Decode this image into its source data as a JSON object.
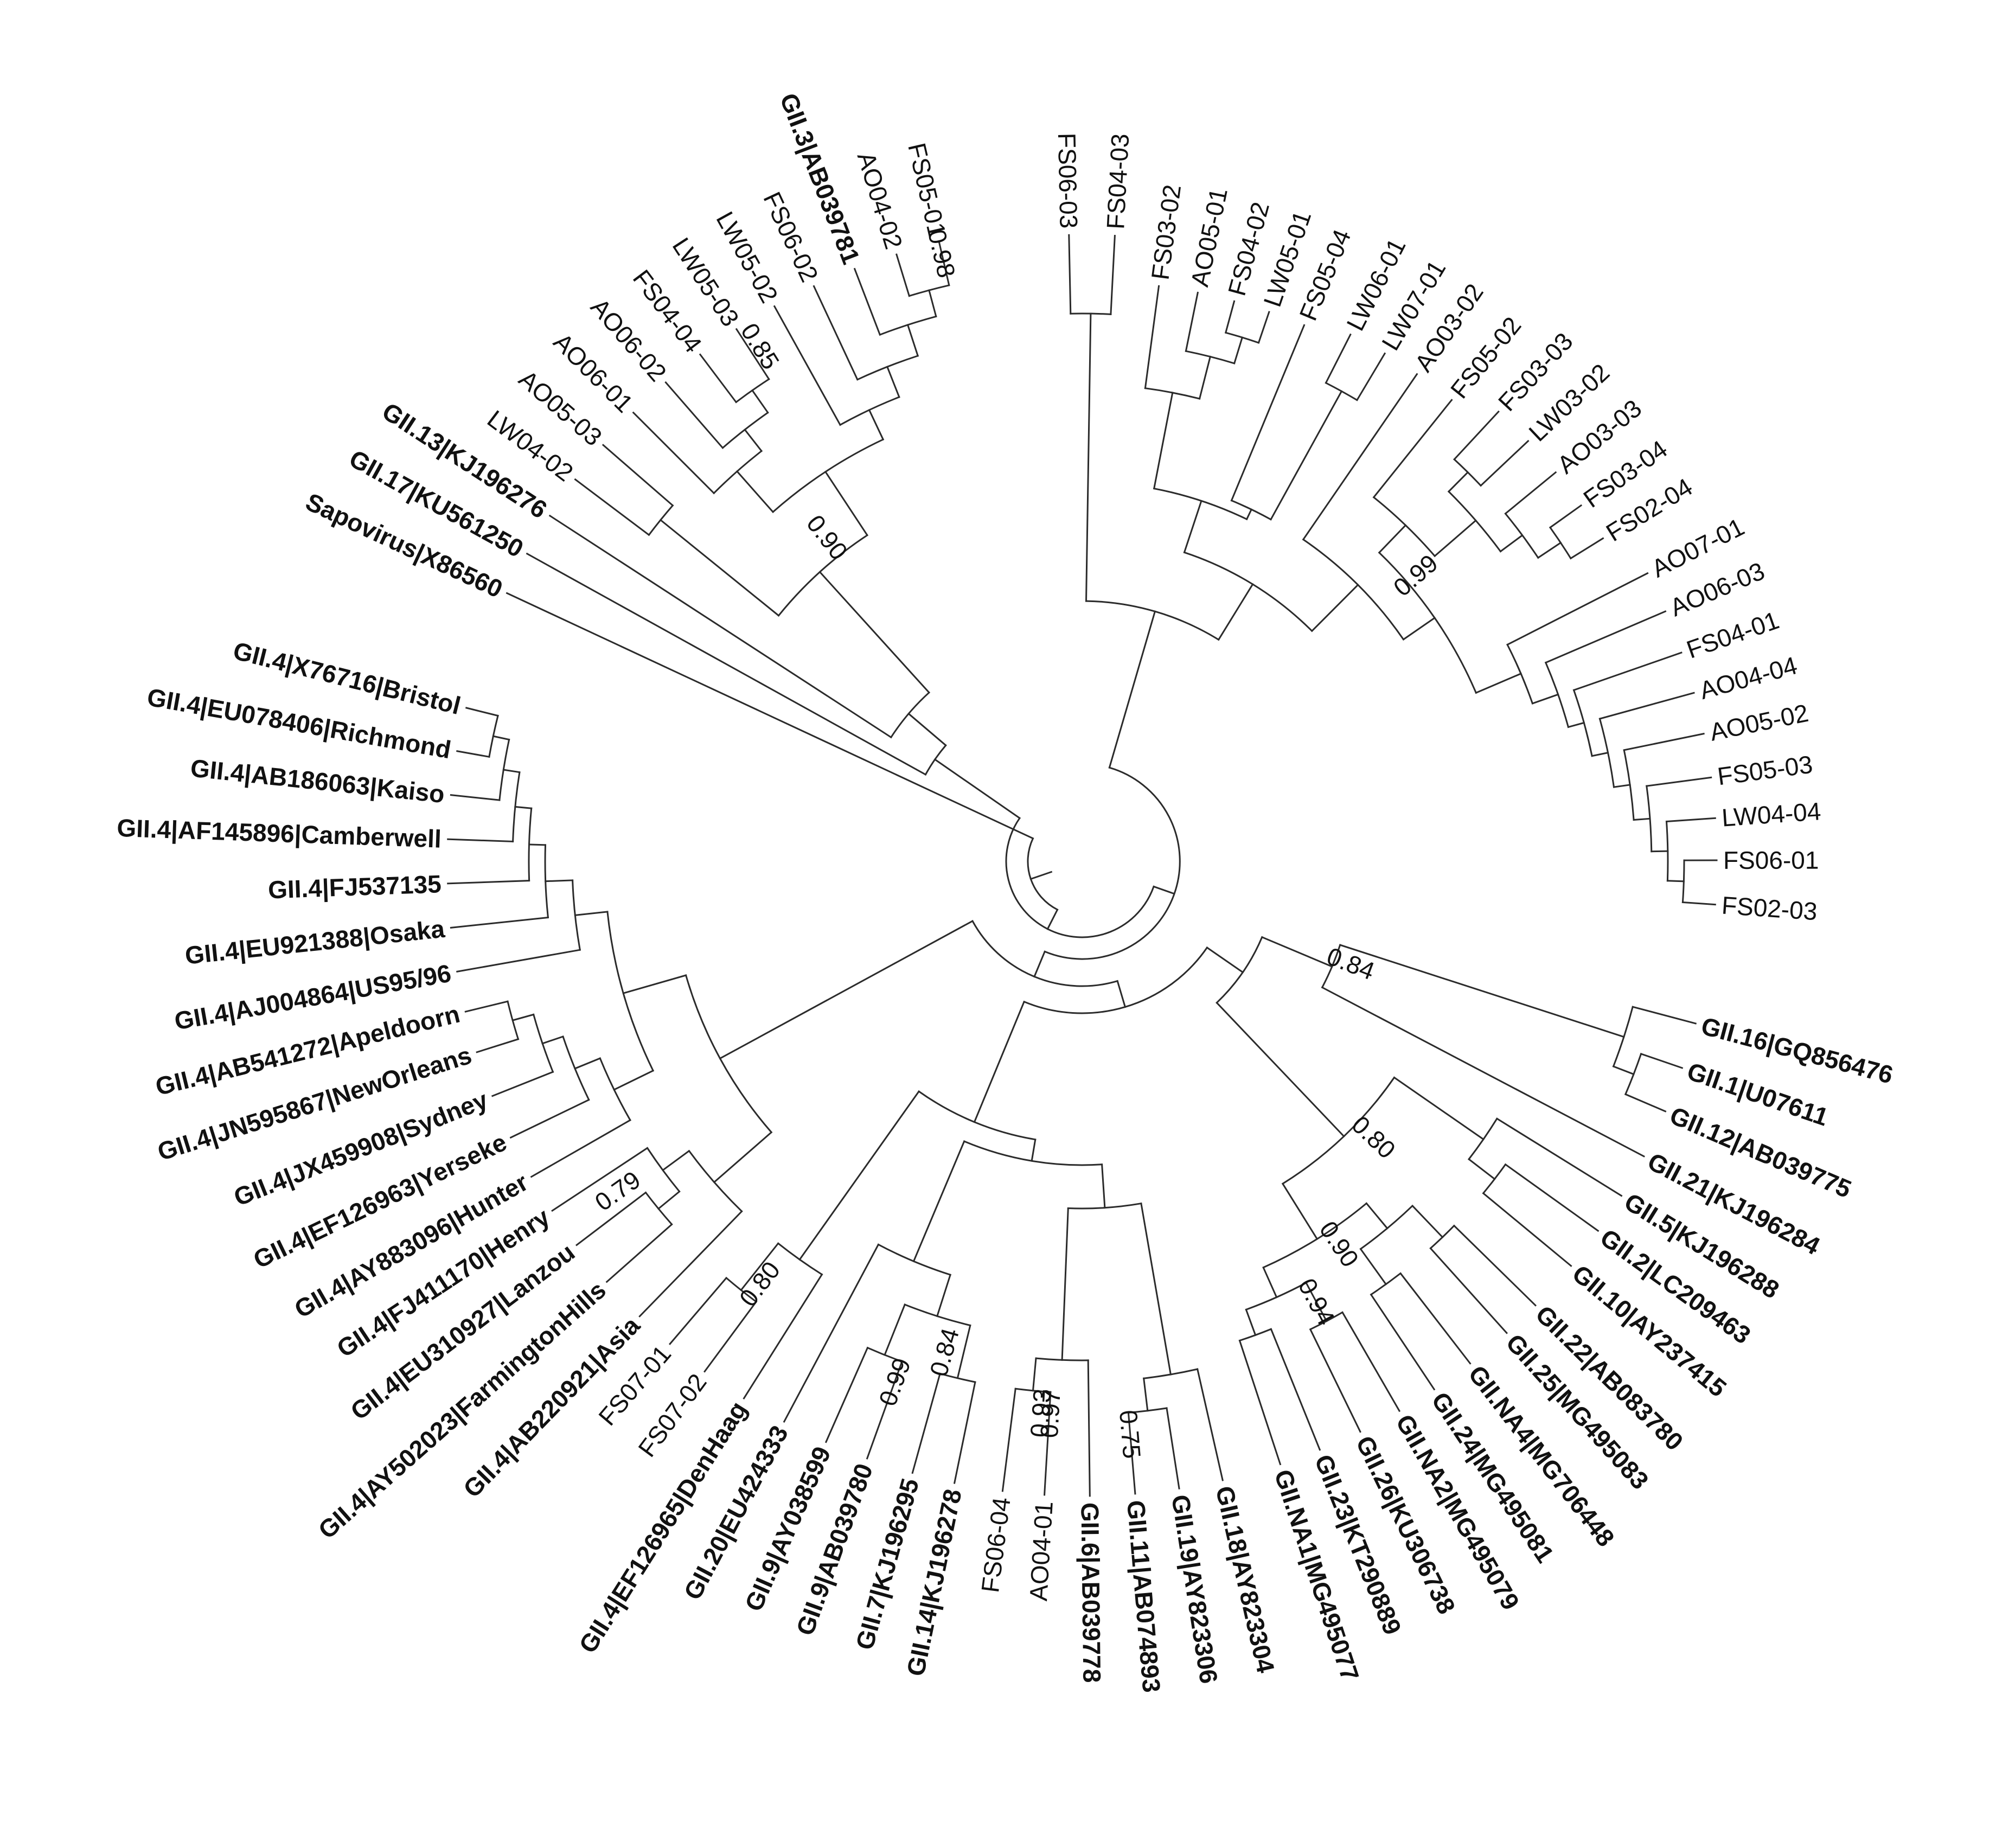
{
  "figure": {
    "rows": [
      {
        "label": "FS06-03",
        "ref": false
      },
      {
        "label": "FS04-03",
        "ref": false
      },
      {
        "label": "FS03-02",
        "ref": false
      },
      {
        "label": "AO05-01",
        "ref": false
      },
      {
        "label": "FS04-02",
        "ref": false
      },
      {
        "label": "LW05-01",
        "ref": false
      },
      {
        "label": "FS05-04",
        "ref": false
      },
      {
        "label": "LW06-01",
        "ref": false
      },
      {
        "label": "LW07-01",
        "ref": false
      },
      {
        "label": "AO03-02",
        "ref": false
      },
      {
        "label": "FS05-02",
        "ref": false
      },
      {
        "label": "FS03-03",
        "ref": false
      },
      {
        "label": "LW03-02",
        "ref": false
      },
      {
        "label": "AO03-03",
        "ref": false
      },
      {
        "label": "FS03-04",
        "ref": false
      },
      {
        "label": "FS02-04",
        "ref": false
      },
      {
        "label": "AO07-01",
        "ref": false
      },
      {
        "label": "AO06-03",
        "ref": false
      },
      {
        "label": "FS04-01",
        "ref": false
      },
      {
        "label": "AO04-04",
        "ref": false
      },
      {
        "label": "AO05-02",
        "ref": false
      },
      {
        "label": "FS05-03",
        "ref": false
      },
      {
        "label": "LW04-04",
        "ref": false
      },
      {
        "label": "FS06-01",
        "ref": false
      },
      {
        "label": "FS02-03",
        "ref": false
      },
      {
        "label": "GII.16|GQ856476",
        "ref": true
      },
      {
        "label": "GII.1|U07611",
        "ref": true
      },
      {
        "label": "GII.12|AB039775",
        "ref": true
      },
      {
        "label": "GII.21|KJ196284",
        "ref": true
      },
      {
        "label": "GII.5|KJ196288",
        "ref": true
      },
      {
        "label": "GII.2|LC209463",
        "ref": true
      },
      {
        "label": "GII.10|AY237415",
        "ref": true
      },
      {
        "label": "GII.22|AB083780",
        "ref": true
      },
      {
        "label": "GII.25|MG495083",
        "ref": true
      },
      {
        "label": "GII.NA4|MG706448",
        "ref": true
      },
      {
        "label": "GII.24|MG495081",
        "ref": true
      },
      {
        "label": "GII.NA2|MG495079",
        "ref": true
      },
      {
        "label": "GII.26|KU306738",
        "ref": true
      },
      {
        "label": "GII.23|KT290889",
        "ref": true
      },
      {
        "label": "GII.NA1|MG495077",
        "ref": true
      },
      {
        "label": "GII.18|AY823304",
        "ref": true
      },
      {
        "label": "GII.19|AY823306",
        "ref": true
      },
      {
        "label": "GII.11|AB074893",
        "ref": true
      },
      {
        "label": "GII.6|AB039778",
        "ref": true
      },
      {
        "label": "AO04-01",
        "ref": false
      },
      {
        "label": "FS06-04",
        "ref": false
      },
      {
        "label": "GII.14|KJ196278",
        "ref": true
      },
      {
        "label": "GII.7|KJ196295",
        "ref": true
      },
      {
        "label": "GII.9|AB039780",
        "ref": true
      },
      {
        "label": "GII.9|AY038599",
        "ref": true
      },
      {
        "label": "GII.20|EU424333",
        "ref": true
      },
      {
        "label": "GII.4|EF126965|DenHaag",
        "ref": true
      },
      {
        "label": "FS07-02",
        "ref": false
      },
      {
        "label": "FS07-01",
        "ref": false
      },
      {
        "label": "GII.4|AB220921|Asia",
        "ref": true
      },
      {
        "label": "GII.4|AY502023|FarmingtonHills",
        "ref": true
      },
      {
        "label": "GII.4|EU310927|Lanzou",
        "ref": true
      },
      {
        "label": "GII.4|FJ411170|Henry",
        "ref": true
      },
      {
        "label": "GII.4|AY883096|Hunter",
        "ref": true
      },
      {
        "label": "GII.4|EF126963|Yerseke",
        "ref": true
      },
      {
        "label": "GII.4|JX459908|Sydney",
        "ref": true
      },
      {
        "label": "GII.4|JN595867|NewOrleans",
        "ref": true
      },
      {
        "label": "GII.4|AB541272|Apeldoorn",
        "ref": true
      },
      {
        "label": "GII.4|AJ004864|US95/96",
        "ref": true
      },
      {
        "label": "GII.4|EU921388|Osaka",
        "ref": true
      },
      {
        "label": "GII.4|FJ537135",
        "ref": true
      },
      {
        "label": "GII.4|AF145896|Camberwell",
        "ref": true
      },
      {
        "label": "GII.4|AB186063|Kaiso",
        "ref": true
      },
      {
        "label": "GII.4|EU078406|Richmond",
        "ref": true
      },
      {
        "label": "GII.4|X76716|Bristol",
        "ref": true
      },
      {
        "label": "Sapovirus|X86560",
        "ref": true
      },
      {
        "label": "GII.17|KU561250",
        "ref": true
      },
      {
        "label": "GII.13|KJ196276",
        "ref": true
      },
      {
        "label": "LW04-02",
        "ref": false
      },
      {
        "label": "AO05-03",
        "ref": false
      },
      {
        "label": "AO06-01",
        "ref": false
      },
      {
        "label": "AO06-02",
        "ref": false
      },
      {
        "label": "FS04-04",
        "ref": false
      },
      {
        "label": "LW05-03",
        "ref": false
      },
      {
        "label": "LW05-02",
        "ref": false
      },
      {
        "label": "FS06-02",
        "ref": false
      },
      {
        "label": "GII.3|AB039781",
        "ref": true
      },
      {
        "label": "AO04-02",
        "ref": false
      },
      {
        "label": "FS05-01",
        "ref": false
      }
    ],
    "support_values": [
      "0.98",
      "0.85",
      "0.90",
      "0.99",
      "0.84",
      "0.80",
      "0.90",
      "0.94",
      "0.75",
      "0.97",
      "0.93",
      "0.84",
      "0.99",
      "0.80",
      "0.79"
    ]
  }
}
